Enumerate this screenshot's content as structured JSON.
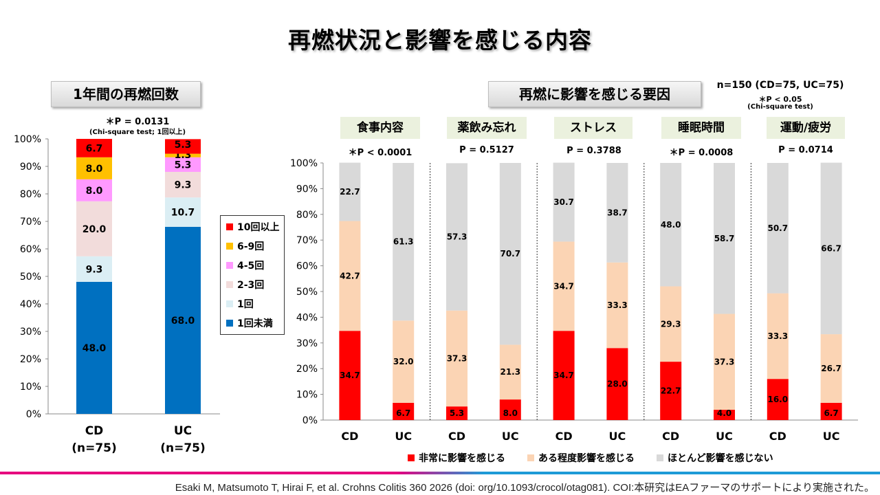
{
  "title": "再燃状況と影響を感じる内容",
  "left_panel": {
    "box_title": "1年間の再燃回数",
    "pvalue": "＊P = 0.0131",
    "test_note": "(Chi-square test; 1回以上)"
  },
  "right_panel": {
    "box_title": "再燃に影響を感じる要因",
    "sample": "n=150 (CD=75, UC=75)",
    "sig_note": "＊P < 0.05",
    "test_note": "(Chi-square test)"
  },
  "colors": {
    "left": [
      "#0070c0",
      "#dbeef4",
      "#f2dcdb",
      "#ff99ff",
      "#ffc000",
      "#ff0000"
    ],
    "right": [
      "#ff0000",
      "#fbd4b4",
      "#d9d9d9"
    ]
  },
  "chart_data": [
    {
      "type": "bar",
      "stacked": true,
      "orientation": "vertical",
      "categories": [
        "CD",
        "UC"
      ],
      "category_notes": [
        "(n=75)",
        "(n=75)"
      ],
      "series": [
        {
          "name": "1回未満",
          "values": [
            48.0,
            68.0
          ]
        },
        {
          "name": "1回",
          "values": [
            9.3,
            10.7
          ]
        },
        {
          "name": "2-3回",
          "values": [
            20.0,
            9.3
          ]
        },
        {
          "name": "4-5回",
          "values": [
            8.0,
            5.3
          ]
        },
        {
          "name": "6-9回",
          "values": [
            8.0,
            1.3
          ]
        },
        {
          "name": "10回以上",
          "values": [
            6.7,
            5.3
          ]
        }
      ],
      "legend_order": [
        "10回以上",
        "6-9回",
        "4-5回",
        "2-3回",
        "1回",
        "1回未満"
      ],
      "y_ticks": [
        "0%",
        "10%",
        "20%",
        "30%",
        "40%",
        "50%",
        "60%",
        "70%",
        "80%",
        "90%",
        "100%"
      ],
      "ylim": [
        0,
        100
      ],
      "legend_position": "right"
    },
    {
      "type": "bar",
      "stacked": true,
      "orientation": "vertical",
      "groups": [
        {
          "label": "食事内容",
          "pvalue": "＊P < 0.0001",
          "categories": [
            "CD",
            "UC"
          ],
          "values": [
            [
              34.7,
              42.7,
              22.7
            ],
            [
              6.7,
              32.0,
              61.3
            ]
          ]
        },
        {
          "label": "薬飲み忘れ",
          "pvalue": "P = 0.5127",
          "categories": [
            "CD",
            "UC"
          ],
          "values": [
            [
              5.3,
              37.3,
              57.3
            ],
            [
              8.0,
              21.3,
              70.7
            ]
          ]
        },
        {
          "label": "ストレス",
          "pvalue": "P = 0.3788",
          "categories": [
            "CD",
            "UC"
          ],
          "values": [
            [
              34.7,
              34.7,
              30.7
            ],
            [
              28.0,
              33.3,
              38.7
            ]
          ]
        },
        {
          "label": "睡眠時間",
          "pvalue": "＊P = 0.0008",
          "categories": [
            "CD",
            "UC"
          ],
          "values": [
            [
              22.7,
              29.3,
              48.0
            ],
            [
              4.0,
              37.3,
              58.7
            ]
          ]
        },
        {
          "label": "運動/疲労",
          "pvalue": "P = 0.0714",
          "categories": [
            "CD",
            "UC"
          ],
          "values": [
            [
              16.0,
              33.3,
              50.7
            ],
            [
              6.7,
              26.7,
              66.7
            ]
          ]
        }
      ],
      "series_names": [
        "非常に影響を感じる",
        "ある程度影響を感じる",
        "ほとんど影響を感じない"
      ],
      "y_ticks": [
        "0%",
        "10%",
        "20%",
        "30%",
        "40%",
        "50%",
        "60%",
        "70%",
        "80%",
        "90%",
        "100%"
      ],
      "ylim": [
        0,
        100
      ],
      "legend_position": "bottom"
    }
  ],
  "citation": "Esaki M, Matsumoto T, Hirai F, et al. Crohns Colitis 360 2026 (doi: org/10.1093/crocol/otag081). COI:本研究はEAファーマのサポートにより実施された。"
}
